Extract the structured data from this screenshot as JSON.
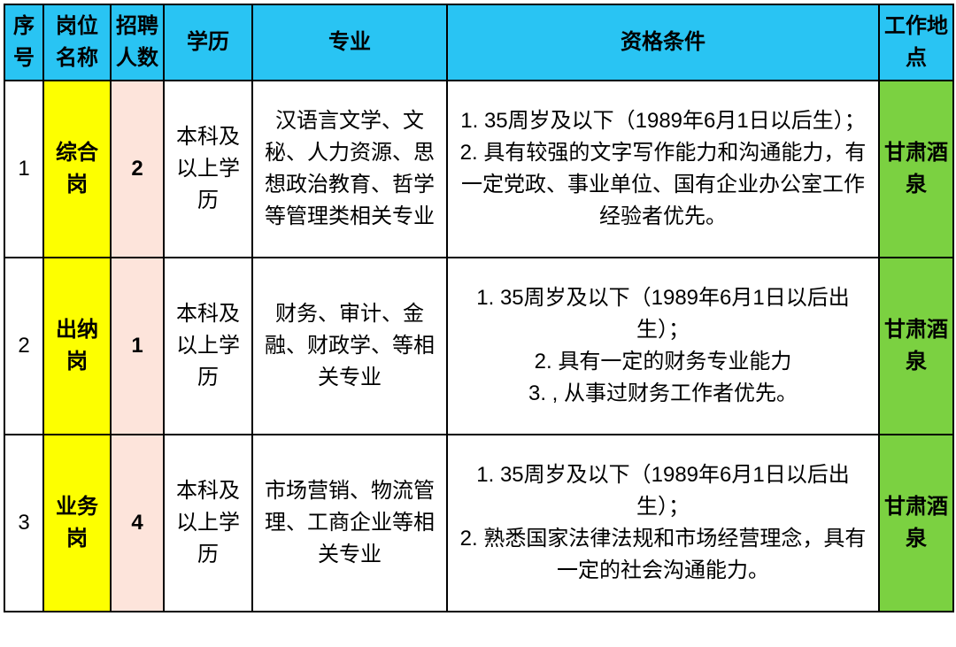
{
  "table": {
    "header_bg": "#29c4f3",
    "border_color": "#000000",
    "yellow_bg": "#fdff00",
    "pink_bg": "#fde4db",
    "green_bg": "#7bd141",
    "columns": [
      {
        "key": "seq",
        "label": "序号"
      },
      {
        "key": "position",
        "label": "岗位名称"
      },
      {
        "key": "count",
        "label": "招聘人数"
      },
      {
        "key": "education",
        "label": "学历"
      },
      {
        "key": "major",
        "label": "专业"
      },
      {
        "key": "qualification",
        "label": "资格条件"
      },
      {
        "key": "location",
        "label": "工作地点"
      }
    ],
    "rows": [
      {
        "seq": "1",
        "position": "综合岗",
        "count": "2",
        "education": "本科及以上学历",
        "major": "汉语言文学、文秘、人力资源、思想政治教育、哲学等管理类相关专业",
        "qualification": "1. 35周岁及以下（1989年6月1日以后生）；\n2. 具有较强的文字写作能力和沟通能力，有一定党政、事业单位、国有企业办公室工作经验者优先。",
        "location": "甘肃酒泉"
      },
      {
        "seq": "2",
        "position": "出纳岗",
        "count": "1",
        "education": "本科及以上学历",
        "major": "财务、审计、金融、财政学、等相关专业",
        "qualification": "1. 35周岁及以下（1989年6月1日以后出生）；\n2. 具有一定的财务专业能力\n3. , 从事过财务工作者优先。",
        "location": "甘肃酒泉"
      },
      {
        "seq": "3",
        "position": "业务岗",
        "count": "4",
        "education": "本科及以上学历",
        "major": "市场营销、物流管理、工商企业等相关专业",
        "qualification": "1. 35周岁及以下（1989年6月1日以后出生）；\n2. 熟悉国家法律法规和市场经营理念，具有一定的社会沟通能力。",
        "location": "甘肃酒泉"
      }
    ]
  }
}
